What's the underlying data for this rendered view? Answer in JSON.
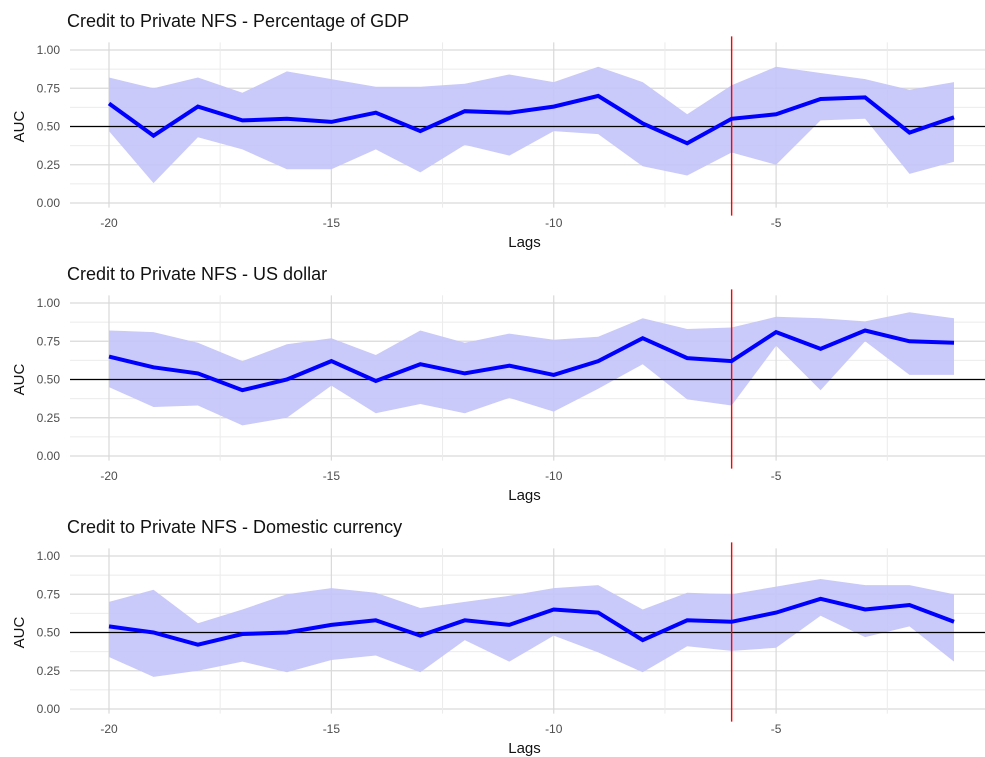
{
  "chart_data": [
    {
      "type": "line",
      "title": "Credit to Private NFS - Percentage of GDP",
      "xlabel": "Lags",
      "ylabel": "AUC",
      "x": [
        -20,
        -19,
        -18,
        -17,
        -16,
        -15,
        -14,
        -13,
        -12,
        -11,
        -10,
        -9,
        -8,
        -7,
        -6,
        -5,
        -4,
        -3,
        -2,
        -1
      ],
      "x_ticks": [
        -20,
        -15,
        -10,
        -5
      ],
      "x_tick_labels": [
        "-20",
        "-15",
        "-10",
        "-5"
      ],
      "y_ticks": [
        0,
        0.25,
        0.5,
        0.75,
        1
      ],
      "y_tick_labels": [
        "0.00",
        "0.25",
        "0.50",
        "0.75",
        "1.00"
      ],
      "xlim": [
        -20.5,
        -0.3
      ],
      "ylim": [
        -0.03,
        1.05
      ],
      "series": [
        {
          "values": [
            0.65,
            0.44,
            0.63,
            0.54,
            0.55,
            0.53,
            0.59,
            0.47,
            0.6,
            0.59,
            0.63,
            0.7,
            0.52,
            0.39,
            0.55,
            0.58,
            0.68,
            0.69,
            0.46,
            0.56
          ],
          "lower": [
            0.47,
            0.13,
            0.43,
            0.35,
            0.22,
            0.22,
            0.35,
            0.2,
            0.38,
            0.31,
            0.47,
            0.45,
            0.24,
            0.18,
            0.33,
            0.25,
            0.54,
            0.55,
            0.19,
            0.27
          ],
          "upper": [
            0.82,
            0.75,
            0.82,
            0.72,
            0.86,
            0.81,
            0.76,
            0.76,
            0.78,
            0.84,
            0.79,
            0.89,
            0.79,
            0.58,
            0.77,
            0.89,
            0.85,
            0.81,
            0.74,
            0.79
          ]
        }
      ],
      "reference_hline": 0.5,
      "reference_vline": -6,
      "grid": true,
      "colors": {
        "line": "#0000ff",
        "band": "#c3c3fa",
        "hline": "#000000",
        "vline": "#ff0000",
        "grid_major": "#d9d9d9",
        "grid_minor": "#ebebeb"
      }
    },
    {
      "type": "line",
      "title": "Credit to Private NFS - US dollar",
      "xlabel": "Lags",
      "ylabel": "AUC",
      "x": [
        -20,
        -19,
        -18,
        -17,
        -16,
        -15,
        -14,
        -13,
        -12,
        -11,
        -10,
        -9,
        -8,
        -7,
        -6,
        -5,
        -4,
        -3,
        -2,
        -1
      ],
      "x_ticks": [
        -20,
        -15,
        -10,
        -5
      ],
      "x_tick_labels": [
        "-20",
        "-15",
        "-10",
        "-5"
      ],
      "y_ticks": [
        0,
        0.25,
        0.5,
        0.75,
        1
      ],
      "y_tick_labels": [
        "0.00",
        "0.25",
        "0.50",
        "0.75",
        "1.00"
      ],
      "xlim": [
        -20.5,
        -0.3
      ],
      "ylim": [
        -0.03,
        1.05
      ],
      "series": [
        {
          "values": [
            0.65,
            0.58,
            0.54,
            0.43,
            0.5,
            0.62,
            0.49,
            0.6,
            0.54,
            0.59,
            0.53,
            0.62,
            0.77,
            0.64,
            0.62,
            0.81,
            0.7,
            0.82,
            0.75,
            0.74
          ],
          "lower": [
            0.45,
            0.32,
            0.33,
            0.2,
            0.25,
            0.46,
            0.28,
            0.34,
            0.28,
            0.38,
            0.29,
            0.44,
            0.6,
            0.37,
            0.33,
            0.72,
            0.43,
            0.75,
            0.53,
            0.53
          ],
          "upper": [
            0.82,
            0.81,
            0.74,
            0.62,
            0.73,
            0.77,
            0.66,
            0.82,
            0.74,
            0.8,
            0.76,
            0.78,
            0.9,
            0.83,
            0.84,
            0.91,
            0.9,
            0.88,
            0.94,
            0.9
          ]
        }
      ],
      "reference_hline": 0.5,
      "reference_vline": -6,
      "grid": true,
      "colors": {
        "line": "#0000ff",
        "band": "#c3c3fa",
        "hline": "#000000",
        "vline": "#ff0000",
        "grid_major": "#d9d9d9",
        "grid_minor": "#ebebeb"
      }
    },
    {
      "type": "line",
      "title": "Credit to Private NFS - Domestic currency",
      "xlabel": "Lags",
      "ylabel": "AUC",
      "x": [
        -20,
        -19,
        -18,
        -17,
        -16,
        -15,
        -14,
        -13,
        -12,
        -11,
        -10,
        -9,
        -8,
        -7,
        -6,
        -5,
        -4,
        -3,
        -2,
        -1
      ],
      "x_ticks": [
        -20,
        -15,
        -10,
        -5
      ],
      "x_tick_labels": [
        "-20",
        "-15",
        "-10",
        "-5"
      ],
      "y_ticks": [
        0,
        0.25,
        0.5,
        0.75,
        1
      ],
      "y_tick_labels": [
        "0.00",
        "0.25",
        "0.50",
        "0.75",
        "1.00"
      ],
      "xlim": [
        -20.5,
        -0.3
      ],
      "ylim": [
        -0.03,
        1.05
      ],
      "series": [
        {
          "values": [
            0.54,
            0.5,
            0.42,
            0.49,
            0.5,
            0.55,
            0.58,
            0.48,
            0.58,
            0.55,
            0.65,
            0.63,
            0.45,
            0.58,
            0.57,
            0.63,
            0.72,
            0.65,
            0.68,
            0.57
          ],
          "lower": [
            0.34,
            0.21,
            0.25,
            0.31,
            0.24,
            0.32,
            0.35,
            0.24,
            0.45,
            0.31,
            0.48,
            0.37,
            0.24,
            0.41,
            0.38,
            0.4,
            0.61,
            0.47,
            0.54,
            0.31
          ],
          "upper": [
            0.7,
            0.78,
            0.56,
            0.65,
            0.75,
            0.79,
            0.76,
            0.66,
            0.7,
            0.74,
            0.79,
            0.81,
            0.65,
            0.76,
            0.75,
            0.8,
            0.85,
            0.81,
            0.81,
            0.75
          ]
        }
      ],
      "reference_hline": 0.5,
      "reference_vline": -6,
      "grid": true,
      "colors": {
        "line": "#0000ff",
        "band": "#c3c3fa",
        "hline": "#000000",
        "vline": "#ff0000",
        "grid_major": "#d9d9d9",
        "grid_minor": "#ebebeb"
      }
    }
  ]
}
